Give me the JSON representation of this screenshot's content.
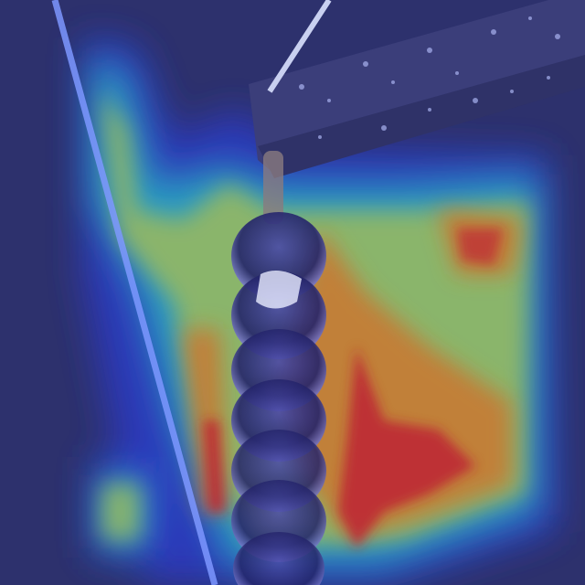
{
  "scene": {
    "subject": "insulator-string-photo",
    "overlay": "attention-heatmap",
    "colors": {
      "background": "#2f3470",
      "beam": "#3c3f78",
      "cable": "#6f8cff",
      "disc": "#2a2a70",
      "heat_red": "#e0262c",
      "heat_orange": "#f08a24",
      "heat_yellow": "#f2d53a",
      "heat_cyan": "#2ad4d8",
      "heat_blue": "#2e3fdc"
    }
  }
}
